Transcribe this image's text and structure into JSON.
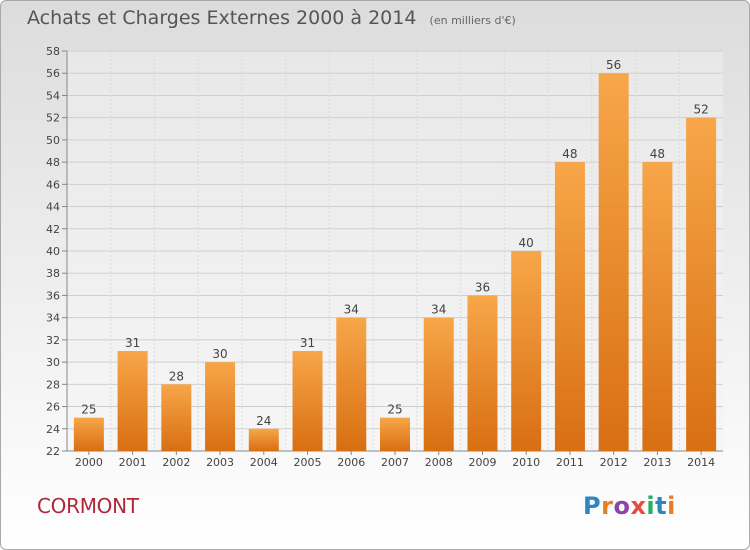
{
  "header": {
    "title": "Achats et Charges Externes 2000 à 2014",
    "subtitle": "(en milliers d'€)"
  },
  "footer": {
    "commune": "CORMONT",
    "logo": {
      "letters": [
        "P",
        "r",
        "o",
        "x",
        "i",
        "t",
        "i"
      ],
      "colors": [
        "#2e86c1",
        "#e67e22",
        "#8e44ad",
        "#e74c3c",
        "#27ae60",
        "#2e86c1",
        "#e67e22"
      ]
    }
  },
  "chart_data": {
    "type": "bar",
    "title": "Achats et Charges Externes 2000 à 2014",
    "subtitle": "(en milliers d'€)",
    "categories": [
      "2000",
      "2001",
      "2002",
      "2003",
      "2004",
      "2005",
      "2006",
      "2007",
      "2008",
      "2009",
      "2010",
      "2011",
      "2012",
      "2013",
      "2014"
    ],
    "values": [
      25,
      31,
      28,
      30,
      24,
      31,
      34,
      25,
      34,
      36,
      40,
      48,
      56,
      48,
      52
    ],
    "ylim": [
      22,
      58
    ],
    "ytick_step": 2,
    "grid": true,
    "bar_color": "#f0952e",
    "xlabel": "",
    "ylabel": ""
  }
}
